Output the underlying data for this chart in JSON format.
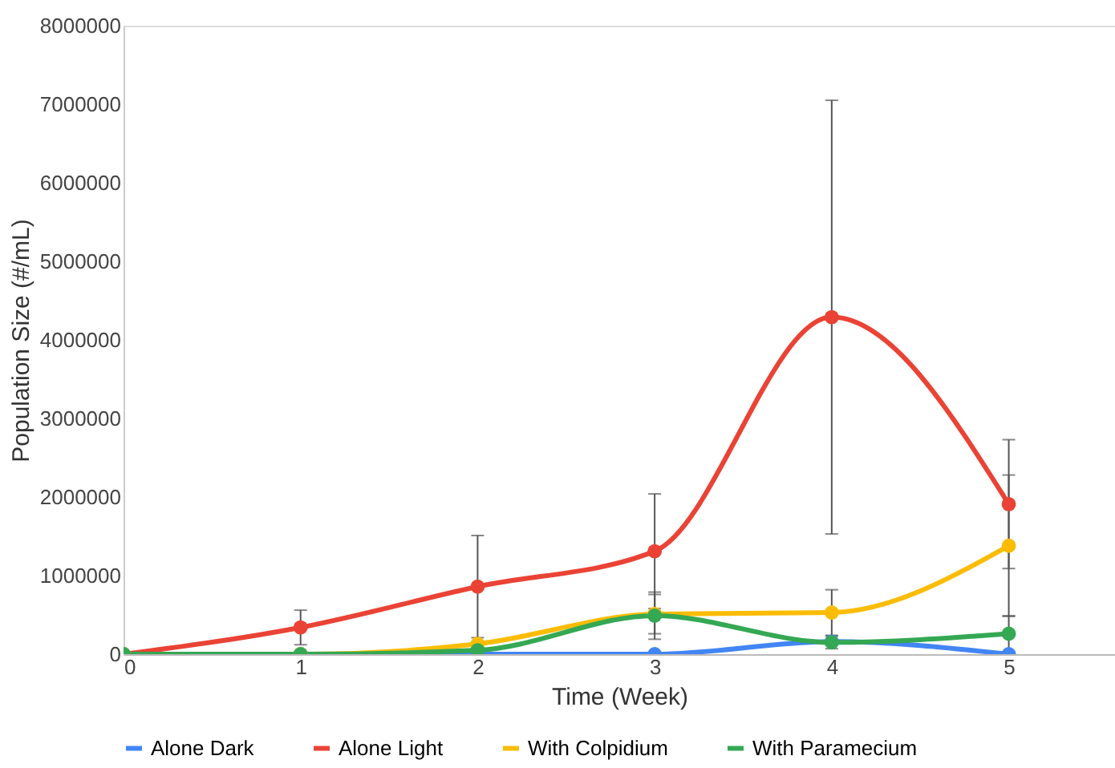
{
  "chart_data": {
    "type": "line",
    "xlabel": "Time (Week)",
    "ylabel": "Population Size (#/mL)",
    "x": [
      0,
      1,
      2,
      3,
      4,
      5
    ],
    "xlim": [
      0,
      5.6
    ],
    "xticks": [
      0,
      1,
      2,
      3,
      4,
      5
    ],
    "ylim": [
      0,
      8000000
    ],
    "yticks": [
      0,
      1000000,
      2000000,
      3000000,
      4000000,
      5000000,
      6000000,
      7000000,
      8000000
    ],
    "grid": false,
    "legend": "bottom",
    "marker": "circle",
    "line_style": "solid",
    "series": [
      {
        "name": "Alone Dark",
        "color": "#4285f4",
        "values": [
          0,
          0,
          0,
          0,
          160000,
          0
        ]
      },
      {
        "name": "Alone Light",
        "color": "#ea4335",
        "values": [
          0,
          340000,
          860000,
          1310000,
          4290000,
          1910000
        ],
        "errors": [
          null,
          220000,
          650000,
          730000,
          2760000,
          820000
        ]
      },
      {
        "name": "With Colpidium",
        "color": "#fbbc04",
        "values": [
          0,
          0,
          130000,
          510000,
          530000,
          1380000
        ],
        "errors": [
          null,
          null,
          null,
          250000,
          290000,
          900000
        ]
      },
      {
        "name": "With Paramecium",
        "color": "#34a853",
        "values": [
          0,
          0,
          50000,
          490000,
          150000,
          260000
        ],
        "errors": [
          null,
          null,
          null,
          300000,
          80000,
          230000
        ]
      }
    ]
  }
}
